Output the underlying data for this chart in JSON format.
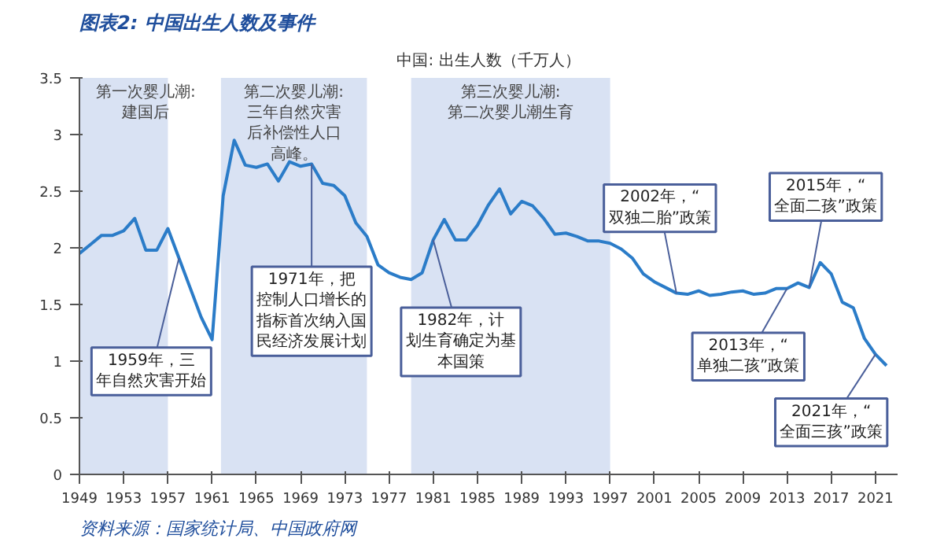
{
  "chart_data": {
    "type": "line",
    "title": "图表2: 中国出生人数及事件",
    "subtitle": "中国: 出生人数（千万人）",
    "x": [
      1949,
      1950,
      1951,
      1952,
      1953,
      1954,
      1955,
      1956,
      1957,
      1958,
      1959,
      1960,
      1961,
      1962,
      1963,
      1964,
      1965,
      1966,
      1967,
      1968,
      1969,
      1970,
      1971,
      1972,
      1973,
      1974,
      1975,
      1976,
      1977,
      1978,
      1979,
      1980,
      1981,
      1982,
      1983,
      1984,
      1985,
      1986,
      1987,
      1988,
      1989,
      1990,
      1991,
      1992,
      1993,
      1994,
      1995,
      1996,
      1997,
      1998,
      1999,
      2000,
      2001,
      2002,
      2003,
      2004,
      2005,
      2006,
      2007,
      2008,
      2009,
      2010,
      2011,
      2012,
      2013,
      2014,
      2015,
      2016,
      2017,
      2018,
      2019,
      2020,
      2021,
      2022
    ],
    "series": [
      {
        "color": "#2b7cc8",
        "values": [
          1.95,
          2.03,
          2.11,
          2.11,
          2.15,
          2.26,
          1.98,
          1.98,
          2.17,
          1.91,
          1.65,
          1.39,
          1.19,
          2.46,
          2.95,
          2.73,
          2.71,
          2.74,
          2.59,
          2.76,
          2.72,
          2.74,
          2.57,
          2.55,
          2.46,
          2.22,
          2.1,
          1.85,
          1.78,
          1.74,
          1.72,
          1.78,
          2.07,
          2.25,
          2.07,
          2.07,
          2.2,
          2.38,
          2.52,
          2.3,
          2.41,
          2.37,
          2.26,
          2.12,
          2.13,
          2.1,
          2.06,
          2.06,
          2.04,
          1.99,
          1.91,
          1.77,
          1.7,
          1.65,
          1.6,
          1.59,
          1.62,
          1.58,
          1.59,
          1.61,
          1.62,
          1.59,
          1.6,
          1.64,
          1.64,
          1.69,
          1.65,
          1.87,
          1.77,
          1.52,
          1.47,
          1.2,
          1.06,
          0.96
        ]
      }
    ],
    "xlim": [
      1949,
      2023
    ],
    "ylim": [
      0,
      3.5
    ],
    "xticks": [
      1949,
      1953,
      1957,
      1961,
      1965,
      1969,
      1973,
      1977,
      1981,
      1985,
      1989,
      1993,
      1997,
      2001,
      2005,
      2009,
      2013,
      2017,
      2021
    ],
    "yticks": [
      0,
      0.5,
      1,
      1.5,
      2,
      2.5,
      3,
      3.5
    ],
    "grid": false,
    "marker": "none",
    "line_style": "solid",
    "bands": [
      {
        "axis": "x",
        "from": 1949,
        "to": 1957,
        "label": "第一次婴儿潮:建国后",
        "color": "#d9e2f3"
      },
      {
        "axis": "x",
        "from": 1961.8,
        "to": 1975,
        "label": "第二次婴儿潮:三年自然灾害后补偿性人口高峰。",
        "color": "#d9e2f3"
      },
      {
        "axis": "x",
        "from": 1979,
        "to": 1997,
        "label": "第三次婴儿潮:第二次婴儿潮生育",
        "color": "#d9e2f3"
      }
    ],
    "annotations": [
      {
        "text": "1959年，三年自然灾害开始",
        "x": 1958,
        "y": 1.91
      },
      {
        "text": "1971年，把控制人口增长的指标首次纳入国民经济发展计划",
        "x": 1970,
        "y": 2.74
      },
      {
        "text": "1982年，计划生育确定为基本国策",
        "x": 1981,
        "y": 2.07
      },
      {
        "text": "2002年，“双独二胎”政策",
        "x": 2003,
        "y": 1.6
      },
      {
        "text": "2013年，“单独二孩”政策",
        "x": 2013,
        "y": 1.64
      },
      {
        "text": "2015年，“全面二孩”政策",
        "x": 2015,
        "y": 1.65
      },
      {
        "text": "2021年，“全面三孩”政策",
        "x": 2021,
        "y": 1.06
      },
      "资料来源：国家统计局、中国政府网"
    ]
  }
}
